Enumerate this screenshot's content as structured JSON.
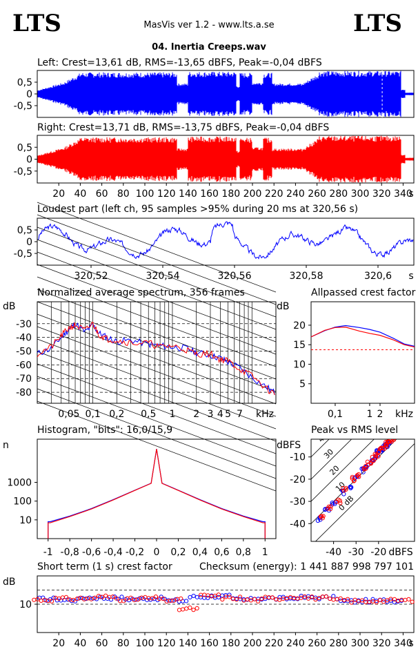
{
  "header": {
    "logo_left": "LTS",
    "logo_right": "LTS",
    "app_title": "MasVis ver 1.2 - www.lts.a.se",
    "file_name": "04. Inertia Creeps.wav"
  },
  "colors": {
    "left": "#0000ff",
    "right": "#ff0000"
  },
  "chart_data": [
    {
      "type": "area",
      "title": "Left: Crest=13,61 dB, RMS=-13,65 dBFS, Peak=-0,04 dBFS",
      "series": [
        {
          "name": "Left",
          "color": "#0000ff"
        }
      ],
      "y_ticks": [
        "0,5",
        "0",
        "-0,5"
      ],
      "ylim": [
        -1,
        1
      ]
    },
    {
      "type": "area",
      "title": "Right: Crest=13,71 dB, RMS=-13,75 dBFS, Peak=-0,04 dBFS",
      "series": [
        {
          "name": "Right",
          "color": "#ff0000"
        }
      ],
      "y_ticks": [
        "0,5",
        "0",
        "-0,5"
      ],
      "x_ticks": [
        "20",
        "40",
        "60",
        "80",
        "100",
        "120",
        "140",
        "160",
        "180",
        "200",
        "220",
        "240",
        "260",
        "280",
        "300",
        "320",
        "340"
      ],
      "x_unit": "s",
      "xlim": [
        0,
        350
      ],
      "ylim": [
        -1,
        1
      ]
    },
    {
      "type": "line",
      "title": "Loudest part (left  ch, 95 samples >95% during 20 ms at 320,56 s)",
      "y_ticks": [
        "0,5",
        "0",
        "-0,5"
      ],
      "x_ticks": [
        "320,52",
        "320,54",
        "320,56",
        "320,58",
        "320,6"
      ],
      "x_unit": "s",
      "xlim": [
        320.505,
        320.61
      ],
      "ylim": [
        -1,
        1
      ]
    },
    {
      "type": "line",
      "title": "Normalized average spectrum, 356 frames",
      "ylabel": "dB",
      "y_ticks": [
        "-30",
        "-40",
        "-50",
        "-60",
        "-70",
        "-80"
      ],
      "x_ticks": [
        "0,05",
        "0,1",
        "0,2",
        "0,5",
        "1",
        "2",
        "3",
        "4",
        "5",
        "7"
      ],
      "x_unit": "kHz",
      "x_scale": "log",
      "xlim": [
        0.02,
        20
      ],
      "ylim": [
        -88,
        -14
      ],
      "x": [
        0.02,
        0.03,
        0.04,
        0.05,
        0.06,
        0.08,
        0.1,
        0.12,
        0.15,
        0.2,
        0.3,
        0.5,
        0.7,
        1,
        1.5,
        2,
        3,
        4,
        5,
        7,
        10,
        15,
        20
      ],
      "series": [
        {
          "name": "Left",
          "color": "#0000ff",
          "values": [
            -52,
            -48,
            -40,
            -34,
            -30,
            -36,
            -31,
            -37,
            -40,
            -43,
            -42,
            -45,
            -46,
            -47,
            -48,
            -51,
            -53,
            -55,
            -58,
            -62,
            -69,
            -76,
            -81
          ]
        },
        {
          "name": "Right",
          "color": "#ff0000",
          "values": [
            -52,
            -47,
            -39,
            -33,
            -31,
            -35,
            -30,
            -38,
            -41,
            -42,
            -44,
            -44,
            -47,
            -46,
            -49,
            -52,
            -52,
            -56,
            -57,
            -63,
            -68,
            -77,
            -82
          ]
        }
      ]
    },
    {
      "type": "line",
      "title": "Allpassed crest factor",
      "ylabel": "dB",
      "y_ticks": [
        "20",
        "15",
        "10",
        "5"
      ],
      "x_ticks": [
        "0,1",
        "1",
        "2",
        "kHz"
      ],
      "x_scale": "log",
      "xlim": [
        0.02,
        20
      ],
      "ylim": [
        0,
        26
      ],
      "reference_line": 13.7,
      "x": [
        0.02,
        0.05,
        0.1,
        0.2,
        0.5,
        1,
        2,
        5,
        10,
        20
      ],
      "series": [
        {
          "name": "Left",
          "color": "#0000ff",
          "values": [
            17,
            18.6,
            19.5,
            19.9,
            19.4,
            18.9,
            18.2,
            16.6,
            15.2,
            14.6
          ]
        },
        {
          "name": "Right",
          "color": "#ff0000",
          "values": [
            17,
            18.7,
            19.4,
            19.5,
            18.5,
            17.9,
            17.4,
            16.2,
            15.0,
            14.4
          ]
        }
      ]
    },
    {
      "type": "line",
      "title": "Histogram, \"bits\": 16,0/15,9",
      "ylabel": "n",
      "y_ticks": [
        "1000",
        "100",
        "10"
      ],
      "y_scale": "log",
      "x_ticks": [
        "-1",
        "-0,8",
        "-0,6",
        "-0,4",
        "-0,2",
        "0",
        "0,2",
        "0,4",
        "0,6",
        "0,8",
        "1"
      ],
      "xlim": [
        -1.1,
        1.1
      ],
      "ylim": [
        1,
        200000
      ],
      "x": [
        -0.98,
        -0.8,
        -0.6,
        -0.4,
        -0.2,
        -0.05,
        0,
        0.05,
        0.2,
        0.4,
        0.6,
        0.8,
        0.98
      ],
      "series": [
        {
          "name": "Left",
          "color": "#0000ff",
          "values": [
            8,
            16,
            40,
            120,
            380,
            900,
            60000,
            900,
            380,
            120,
            40,
            16,
            8
          ]
        },
        {
          "name": "Right",
          "color": "#ff0000",
          "values": [
            7,
            15,
            38,
            115,
            370,
            880,
            60000,
            880,
            370,
            115,
            38,
            15,
            7
          ]
        }
      ]
    },
    {
      "type": "scatter",
      "title": "Peak vs RMS level",
      "ylabel": "dBFS",
      "xlabel": "dBFS",
      "y_ticks": [
        "-10",
        "-20",
        "-30",
        "-40"
      ],
      "x_ticks": [
        "-40",
        "-30",
        "-20",
        "dBFS"
      ],
      "diagonal_labels": [
        "40",
        "30",
        "20",
        "10",
        "0 dB"
      ],
      "xlim": [
        -50,
        -4
      ],
      "ylim": [
        -48,
        -2
      ],
      "series": [
        {
          "name": "Left",
          "color": "#0000ff",
          "x": [
            -46,
            -43,
            -40,
            -36,
            -33,
            -30,
            -27,
            -25,
            -23,
            -21,
            -20,
            -19,
            -18,
            -17,
            -16,
            -15
          ],
          "y": [
            -38,
            -34,
            -31,
            -26,
            -24,
            -19,
            -16,
            -14,
            -12,
            -10,
            -8,
            -7,
            -6,
            -5,
            -4,
            -3
          ]
        },
        {
          "name": "Right",
          "color": "#ff0000",
          "x": [
            -45,
            -42,
            -38,
            -35,
            -31,
            -29,
            -26,
            -24,
            -22,
            -21,
            -19,
            -18,
            -17,
            -16,
            -15,
            -14
          ],
          "y": [
            -37,
            -33,
            -30,
            -25,
            -20,
            -18,
            -15,
            -13,
            -11,
            -9,
            -7,
            -6,
            -5,
            -4,
            -3,
            -2
          ]
        }
      ]
    },
    {
      "type": "scatter",
      "title": "Short term (1 s) crest factor",
      "checksum_text": "Checksum (energy):  1 441 887 998 797 101",
      "ylabel": "dB",
      "y_ticks": [
        "10"
      ],
      "x_ticks": [
        "20",
        "40",
        "60",
        "80",
        "100",
        "120",
        "140",
        "160",
        "180",
        "200",
        "220",
        "240",
        "260",
        "280",
        "300",
        "320",
        "340"
      ],
      "x_unit": "s",
      "xlim": [
        0,
        350
      ],
      "ylim": [
        0,
        20
      ],
      "reference_lines": [
        10,
        15
      ],
      "series": [
        {
          "name": "Left",
          "color": "#0000ff",
          "x": [
            10,
            30,
            50,
            70,
            90,
            110,
            130,
            150,
            170,
            190,
            210,
            230,
            250,
            270,
            290,
            310,
            330
          ],
          "y": [
            11.8,
            11.5,
            12.3,
            12.2,
            11.8,
            12.0,
            11.2,
            12.6,
            12.8,
            11.6,
            12.1,
            12.0,
            12.4,
            12.3,
            11.0,
            11.2,
            11.3
          ]
        },
        {
          "name": "Right",
          "color": "#ff0000",
          "x": [
            5,
            25,
            45,
            65,
            85,
            105,
            125,
            140,
            160,
            180,
            200,
            220,
            240,
            260,
            280,
            300,
            320,
            340
          ],
          "y": [
            11.6,
            11.9,
            12.0,
            12.6,
            11.7,
            12.1,
            11.4,
            8.3,
            12.9,
            12.2,
            11.5,
            12.1,
            12.6,
            12.2,
            11.5,
            11.1,
            11.3,
            11.4
          ]
        }
      ]
    }
  ]
}
